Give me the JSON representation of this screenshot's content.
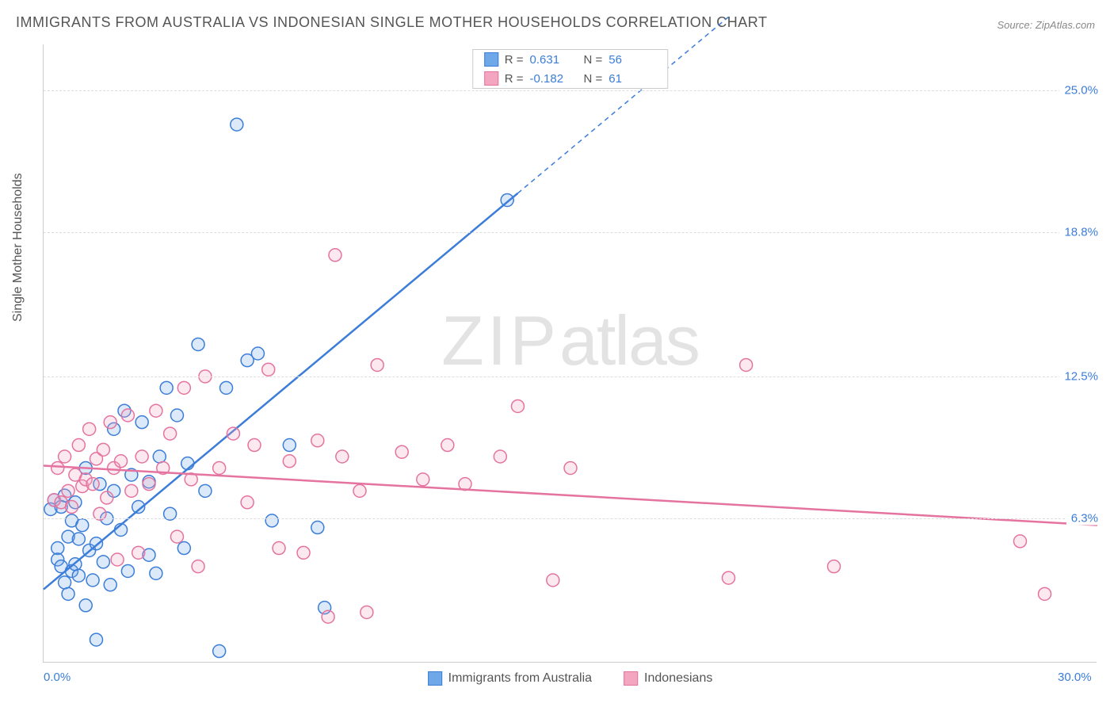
{
  "title": "IMMIGRANTS FROM AUSTRALIA VS INDONESIAN SINGLE MOTHER HOUSEHOLDS CORRELATION CHART",
  "source": "Source: ZipAtlas.com",
  "ylabel": "Single Mother Households",
  "watermark_zip": "ZIP",
  "watermark_atlas": "atlas",
  "chart": {
    "type": "scatter",
    "xlim": [
      0,
      30
    ],
    "ylim": [
      0,
      27
    ],
    "x_ticks": [
      {
        "value": 0,
        "label": "0.0%"
      },
      {
        "value": 30,
        "label": "30.0%"
      }
    ],
    "y_ticks": [
      {
        "value": 6.3,
        "label": "6.3%"
      },
      {
        "value": 12.5,
        "label": "12.5%"
      },
      {
        "value": 18.8,
        "label": "18.8%"
      },
      {
        "value": 25.0,
        "label": "25.0%"
      }
    ],
    "background_color": "#ffffff",
    "grid_color": "#dddddd",
    "marker_radius": 8,
    "marker_stroke_width": 1.5,
    "marker_fill_opacity": 0.25,
    "trendline_width": 2.5
  },
  "series": [
    {
      "name": "Immigrants from Australia",
      "color": "#6ea8e8",
      "stroke": "#3b7dd8",
      "R": "0.631",
      "N": "56",
      "trend": {
        "x1": 0,
        "y1": 3.2,
        "x2": 13.5,
        "y2": 20.5,
        "dash_x2": 19.5,
        "dash_y2": 28.2
      },
      "points": [
        [
          0.2,
          6.7
        ],
        [
          0.3,
          7.1
        ],
        [
          0.4,
          5.0
        ],
        [
          0.4,
          4.5
        ],
        [
          0.5,
          4.2
        ],
        [
          0.5,
          6.8
        ],
        [
          0.6,
          3.5
        ],
        [
          0.6,
          7.3
        ],
        [
          0.7,
          3.0
        ],
        [
          0.7,
          5.5
        ],
        [
          0.8,
          4.0
        ],
        [
          0.8,
          6.2
        ],
        [
          0.9,
          4.3
        ],
        [
          0.9,
          7.0
        ],
        [
          1.0,
          5.4
        ],
        [
          1.0,
          3.8
        ],
        [
          1.1,
          6.0
        ],
        [
          1.2,
          2.5
        ],
        [
          1.2,
          8.5
        ],
        [
          1.3,
          4.9
        ],
        [
          1.4,
          3.6
        ],
        [
          1.5,
          5.2
        ],
        [
          1.5,
          1.0
        ],
        [
          1.6,
          7.8
        ],
        [
          1.7,
          4.4
        ],
        [
          1.8,
          6.3
        ],
        [
          1.9,
          3.4
        ],
        [
          2.0,
          10.2
        ],
        [
          2.0,
          7.5
        ],
        [
          2.2,
          5.8
        ],
        [
          2.3,
          11.0
        ],
        [
          2.4,
          4.0
        ],
        [
          2.5,
          8.2
        ],
        [
          2.7,
          6.8
        ],
        [
          2.8,
          10.5
        ],
        [
          3.0,
          4.7
        ],
        [
          3.0,
          7.9
        ],
        [
          3.2,
          3.9
        ],
        [
          3.3,
          9.0
        ],
        [
          3.5,
          12.0
        ],
        [
          3.6,
          6.5
        ],
        [
          3.8,
          10.8
        ],
        [
          4.0,
          5.0
        ],
        [
          4.1,
          8.7
        ],
        [
          4.4,
          13.9
        ],
        [
          4.6,
          7.5
        ],
        [
          5.0,
          0.5
        ],
        [
          5.2,
          12.0
        ],
        [
          5.5,
          23.5
        ],
        [
          5.8,
          13.2
        ],
        [
          6.1,
          13.5
        ],
        [
          6.5,
          6.2
        ],
        [
          7.0,
          9.5
        ],
        [
          7.8,
          5.9
        ],
        [
          8.0,
          2.4
        ],
        [
          13.2,
          20.2
        ]
      ]
    },
    {
      "name": "Indonesians",
      "color": "#f4a6c0",
      "stroke": "#e5739f",
      "R": "-0.182",
      "N": "61",
      "trend": {
        "x1": 0,
        "y1": 8.6,
        "x2": 30,
        "y2": 6.0
      },
      "points": [
        [
          0.3,
          7.1
        ],
        [
          0.4,
          8.5
        ],
        [
          0.5,
          7.0
        ],
        [
          0.6,
          9.0
        ],
        [
          0.7,
          7.5
        ],
        [
          0.8,
          6.8
        ],
        [
          0.9,
          8.2
        ],
        [
          1.0,
          9.5
        ],
        [
          1.1,
          7.7
        ],
        [
          1.2,
          8.0
        ],
        [
          1.3,
          10.2
        ],
        [
          1.4,
          7.8
        ],
        [
          1.5,
          8.9
        ],
        [
          1.6,
          6.5
        ],
        [
          1.7,
          9.3
        ],
        [
          1.8,
          7.2
        ],
        [
          1.9,
          10.5
        ],
        [
          2.0,
          8.5
        ],
        [
          2.1,
          4.5
        ],
        [
          2.2,
          8.8
        ],
        [
          2.4,
          10.8
        ],
        [
          2.5,
          7.5
        ],
        [
          2.7,
          4.8
        ],
        [
          2.8,
          9.0
        ],
        [
          3.0,
          7.8
        ],
        [
          3.2,
          11.0
        ],
        [
          3.4,
          8.5
        ],
        [
          3.6,
          10.0
        ],
        [
          3.8,
          5.5
        ],
        [
          4.0,
          12.0
        ],
        [
          4.2,
          8.0
        ],
        [
          4.4,
          4.2
        ],
        [
          4.6,
          12.5
        ],
        [
          5.0,
          8.5
        ],
        [
          5.4,
          10.0
        ],
        [
          5.8,
          7.0
        ],
        [
          6.0,
          9.5
        ],
        [
          6.4,
          12.8
        ],
        [
          6.7,
          5.0
        ],
        [
          7.0,
          8.8
        ],
        [
          7.4,
          4.8
        ],
        [
          7.8,
          9.7
        ],
        [
          8.1,
          2.0
        ],
        [
          8.3,
          17.8
        ],
        [
          8.5,
          9.0
        ],
        [
          9.0,
          7.5
        ],
        [
          9.2,
          2.2
        ],
        [
          9.5,
          13.0
        ],
        [
          10.2,
          9.2
        ],
        [
          10.8,
          8.0
        ],
        [
          11.5,
          9.5
        ],
        [
          12.0,
          7.8
        ],
        [
          13.0,
          9.0
        ],
        [
          13.5,
          11.2
        ],
        [
          14.5,
          3.6
        ],
        [
          15.0,
          8.5
        ],
        [
          19.5,
          3.7
        ],
        [
          22.5,
          4.2
        ],
        [
          27.8,
          5.3
        ],
        [
          28.5,
          3.0
        ],
        [
          20.0,
          13.0
        ]
      ]
    }
  ]
}
